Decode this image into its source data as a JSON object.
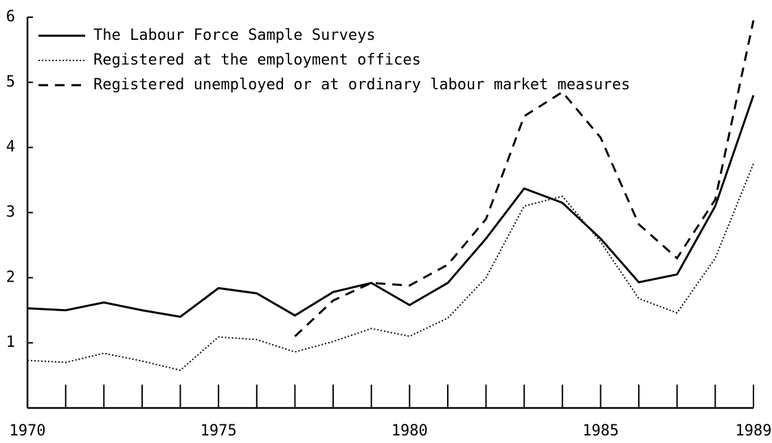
{
  "chart_data": {
    "type": "line",
    "x": [
      1970,
      1971,
      1972,
      1973,
      1974,
      1975,
      1976,
      1977,
      1978,
      1979,
      1980,
      1981,
      1982,
      1983,
      1984,
      1985,
      1986,
      1987,
      1988,
      1989
    ],
    "series": [
      {
        "name": "The Labour Force Sample Surveys",
        "color": "#000000",
        "style": "solid",
        "values": [
          1.53,
          1.5,
          1.62,
          1.5,
          1.4,
          1.84,
          1.76,
          1.42,
          1.78,
          1.92,
          1.58,
          1.92,
          2.6,
          3.37,
          3.15,
          2.6,
          1.93,
          2.05,
          3.1,
          4.8
        ]
      },
      {
        "name": "Registered at the employment offices",
        "color": "#000000",
        "style": "dotted",
        "values": [
          0.73,
          0.7,
          0.84,
          0.72,
          0.58,
          1.09,
          1.05,
          0.86,
          1.02,
          1.22,
          1.1,
          1.38,
          2.0,
          3.1,
          3.25,
          2.55,
          1.68,
          1.46,
          2.3,
          3.75
        ]
      },
      {
        "name": "Registered unemployed or at ordinary labour market measures",
        "color": "#000000",
        "style": "dashed",
        "values": [
          null,
          null,
          null,
          null,
          null,
          null,
          null,
          1.1,
          1.65,
          1.92,
          1.88,
          2.2,
          2.9,
          4.48,
          4.85,
          4.15,
          2.82,
          2.3,
          3.2,
          5.95
        ]
      }
    ],
    "xlim": [
      1970,
      1989
    ],
    "xticks": [
      1970,
      1975,
      1980,
      1985,
      1989
    ],
    "ylim": [
      0,
      6
    ],
    "yticks": [
      1,
      2,
      3,
      4,
      5,
      6
    ],
    "legend": "upper left"
  }
}
